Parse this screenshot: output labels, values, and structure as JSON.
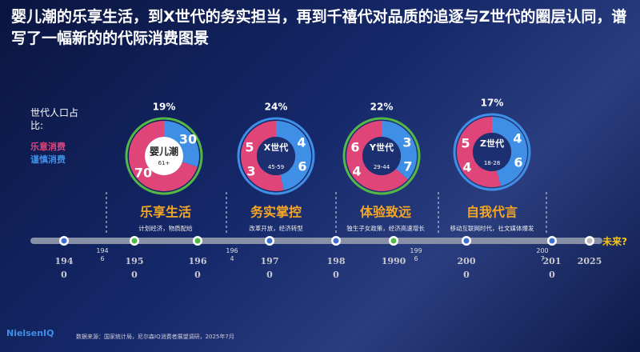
{
  "title": "婴儿潮的乐享生活，到X世代的务实担当，再到千禧代对品质的追逐与Z世代的圈层认同，谱写了一幅新的的代际消费图景",
  "legend": {
    "label": "世代人口占比:",
    "enjoy": "乐意消费",
    "cautious": "谨慎消费",
    "enjoy_color": "#e0457a",
    "cautious_color": "#3f8fe6"
  },
  "generations": [
    {
      "share": "19%",
      "name": "婴儿潮",
      "age": "61+",
      "enjoy": 70,
      "cautious": 30,
      "enjoy_labels": [
        "70"
      ],
      "cautious_labels": [
        "30"
      ],
      "ring": "#54b848",
      "headline": "乐享生活",
      "desc": "计划经济，物质配给"
    },
    {
      "share": "24%",
      "name": "X世代",
      "age": "45-59",
      "enjoy": 53,
      "cautious": 46,
      "enjoy_labels": [
        "5",
        "3"
      ],
      "cautious_labels": [
        "4",
        "6"
      ],
      "ring": "#3f8fe6",
      "headline": "务实掌控",
      "desc": "改革开放，经济转型"
    },
    {
      "share": "22%",
      "name": "Y世代",
      "age": "29-44",
      "enjoy": 64,
      "cautious": 37,
      "enjoy_labels": [
        "6",
        "4"
      ],
      "cautious_labels": [
        "3",
        "7"
      ],
      "ring": "#54b848",
      "headline": "体验致远",
      "desc": "独生子女政策，经济高速增长"
    },
    {
      "share": "17%",
      "name": "Z世代",
      "age": "18-28",
      "enjoy": 54,
      "cautious": 46,
      "enjoy_labels": [
        "5",
        "4"
      ],
      "cautious_labels": [
        "4",
        "6"
      ],
      "ring": "#3f8fe6",
      "headline": "自我代言",
      "desc": "移动互联网时代，社文媒体爆发"
    }
  ],
  "timeline": {
    "major_years": [
      "1940",
      "1950",
      "1960",
      "1970",
      "1980",
      "1990",
      "2000",
      "2010",
      "2025"
    ],
    "minor_years": [
      "1946",
      "1964",
      "1996",
      "2007"
    ],
    "future": "未来?"
  },
  "footer": {
    "logo": "NielsenIQ",
    "source": "数据来源：国家统计局，尼尔森IQ消费者展望调研，2025年7月"
  }
}
